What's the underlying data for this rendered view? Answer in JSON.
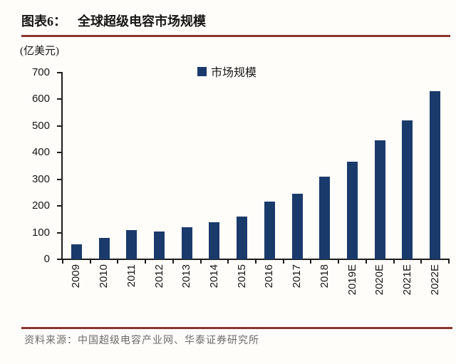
{
  "header": {
    "label": "图表6：",
    "title": "全球超级电容市场规模"
  },
  "chart": {
    "unit_label": "(亿美元)",
    "legend_label": "市场规模"
  },
  "chart_data": {
    "type": "bar",
    "title": "全球超级电容市场规模",
    "categories": [
      "2009",
      "2010",
      "2011",
      "2012",
      "2013",
      "2014",
      "2015",
      "2016",
      "2017",
      "2018",
      "2019E",
      "2020E",
      "2021E",
      "2022E"
    ],
    "series": [
      {
        "name": "市场规模",
        "values": [
          55,
          80,
          110,
          105,
          120,
          140,
          160,
          215,
          245,
          310,
          365,
          445,
          520,
          630
        ]
      }
    ],
    "xlabel": "",
    "ylabel": "(亿美元)",
    "ylim": [
      0,
      700
    ],
    "ytick_step": 100,
    "grid": false,
    "legend_position": "top-center"
  },
  "colors": {
    "bar": "#1a3a6b",
    "accent_rule": "#8a3530",
    "axis": "#1c1c1c",
    "source_text": "#6c6a67"
  },
  "footer": {
    "source": "资料来源：中国超级电容产业网、华泰证券研究所"
  }
}
